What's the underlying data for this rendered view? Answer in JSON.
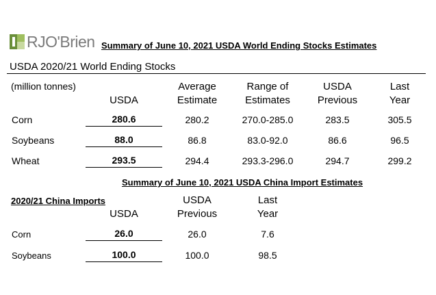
{
  "logo": {
    "text": "RJO'Brien"
  },
  "titles": {
    "main": "Summary of June 10, 2021 USDA World Ending Stocks Estimates",
    "section": "USDA 2020/21 World Ending Stocks",
    "china": "Summary of June 10, 2021 USDA China Import Estimates",
    "china_label": "2020/21 China Imports"
  },
  "world_table": {
    "unit": "(million tonnes)",
    "headers": {
      "usda": "USDA",
      "avg_1": "Average",
      "avg_2": "Estimate",
      "range_1": "Range of",
      "range_2": "Estimates",
      "prev_1": "USDA",
      "prev_2": "Previous",
      "last_1": "Last",
      "last_2": "Year"
    },
    "rows": [
      {
        "label": "Corn",
        "usda": "280.6",
        "avg": "280.2",
        "range": "270.0-285.0",
        "prev": "283.5",
        "last": "305.5"
      },
      {
        "label": "Soybeans",
        "usda": "88.0",
        "avg": "86.8",
        "range": "83.0-92.0",
        "prev": "86.6",
        "last": "96.5"
      },
      {
        "label": "Wheat",
        "usda": "293.5",
        "avg": "294.4",
        "range": "293.3-296.0",
        "prev": "294.7",
        "last": "299.2"
      }
    ]
  },
  "china_table": {
    "headers": {
      "usda": "USDA",
      "prev_1": "USDA",
      "prev_2": "Previous",
      "last_1": "Last",
      "last_2": "Year"
    },
    "rows": [
      {
        "label": "Corn",
        "usda": "26.0",
        "prev": "26.0",
        "last": "7.6"
      },
      {
        "label": "Soybeans",
        "usda": "100.0",
        "prev": "100.0",
        "last": "98.5"
      }
    ]
  }
}
